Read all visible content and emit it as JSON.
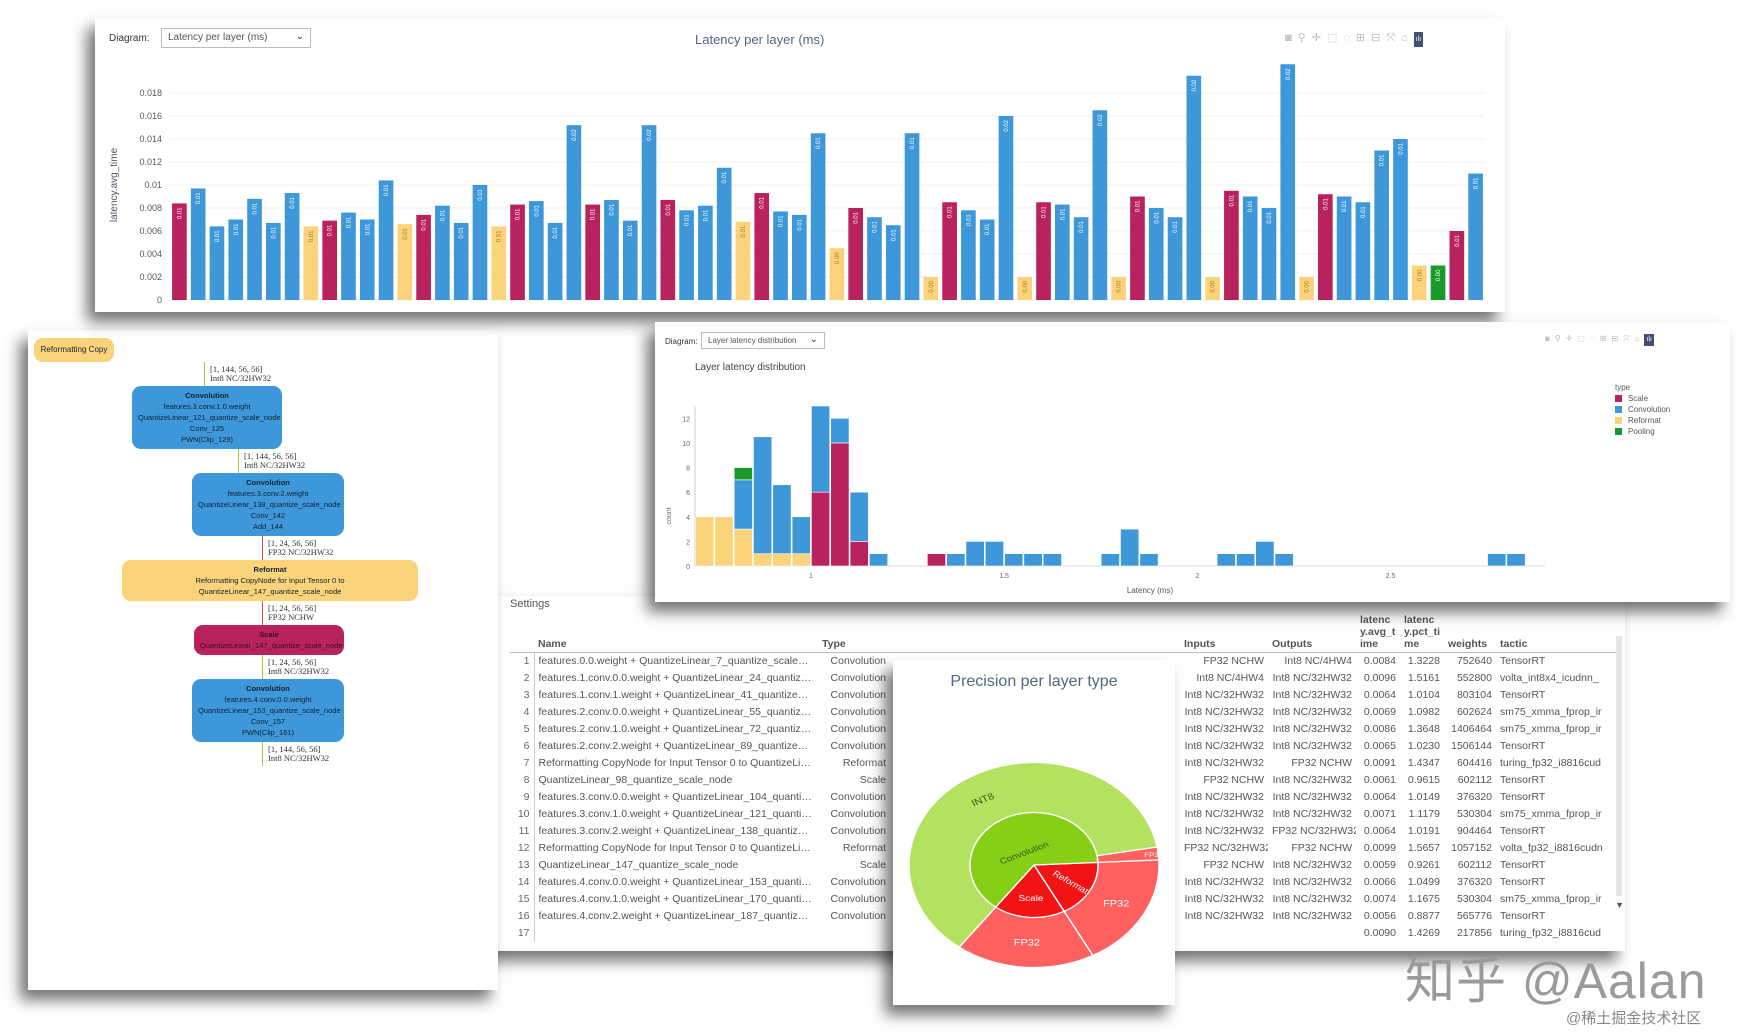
{
  "graph": {
    "partial_node": "Reformatting Copy",
    "nodes": [
      {
        "type": "conv",
        "title": "Convolution",
        "lines": [
          "features.3.conv.1.0.weight",
          "QuantizeLinear_121_quantize_scale_node",
          "Conv_125",
          "PWN(Clip_129)"
        ]
      },
      {
        "type": "conv",
        "title": "Convolution",
        "lines": [
          "features.3.conv.2.weight",
          "QuantizeLinear_138_quantize_scale_node",
          "Conv_142",
          "Add_144"
        ]
      },
      {
        "type": "reformat",
        "title": "Reformat",
        "lines": [
          "Reformatting CopyNode for Input Tensor 0 to QuantizeLinear_147_quantize_scale_node"
        ]
      },
      {
        "type": "scale",
        "title": "Scale",
        "lines": [
          "QuantizeLinear_147_quantize_scale_node"
        ]
      },
      {
        "type": "conv",
        "title": "Convolution",
        "lines": [
          "features.4.conv.0.0.weight",
          "QuantizeLinear_153_quantize_scale_node",
          "Conv_157",
          "PWN(Clip_161)"
        ]
      }
    ],
    "edges": [
      {
        "shape": "[1, 144, 56, 56]",
        "format": "Int8 NC/32HW32"
      },
      {
        "shape": "[1, 144, 56, 56]",
        "format": "Int8 NC/32HW32"
      },
      {
        "shape": "[1, 24, 56, 56]",
        "format": "FP32 NC/32HW32"
      },
      {
        "shape": "[1, 24, 56, 56]",
        "format": "FP32 NCHW"
      },
      {
        "shape": "[1, 24, 56, 56]",
        "format": "Int8 NC/32HW32"
      },
      {
        "shape": "[1, 144, 56, 56]",
        "format": "Int8 NC/32HW32"
      }
    ]
  },
  "table": {
    "settings_label": "Settings",
    "headers": [
      "",
      "Name",
      "Type",
      "Inputs",
      "Outputs",
      "latency.avg_time",
      "latency.pct_time",
      "weights",
      "tactic"
    ],
    "rows": [
      {
        "n": "1",
        "name": "features.0.0.weight + QuantizeLinear_7_quantize_scale_node + Conv_12 + PWN(Clip_16)",
        "type": "Convolution",
        "in": "FP32 NCHW",
        "out": "Int8 NC/4HW4",
        "a": "0.0084",
        "b": "1.3228",
        "c": "752640",
        "tactic": "TensorRT"
      },
      {
        "n": "2",
        "name": "features.1.conv.0.0.weight + QuantizeLinear_24_quantize_scale_node + Conv_29 + PWN(Clip_33)",
        "type": "Convolution",
        "in": "Int8 NC/4HW4",
        "out": "Int8 NC/32HW32",
        "a": "0.0096",
        "b": "1.5161",
        "c": "552800",
        "tactic": "volta_int8x4_icudnn_"
      },
      {
        "n": "3",
        "name": "features.1.conv.1.weight + QuantizeLinear_41_quantize_scale_node + Conv_46",
        "type": "Convolution",
        "in": "Int8 NC/32HW32",
        "out": "Int8 NC/32HW32",
        "a": "0.0064",
        "b": "1.0104",
        "c": "803104",
        "tactic": "TensorRT"
      },
      {
        "n": "4",
        "name": "features.2.conv.0.0.weight + QuantizeLinear_55_quantize_scale_node + Conv_60 + PWN(Clip_64)",
        "type": "Convolution",
        "in": "Int8 NC/32HW32",
        "out": "Int8 NC/32HW32",
        "a": "0.0069",
        "b": "1.0982",
        "c": "602624",
        "tactic": "sm75_xmma_fprop_ir"
      },
      {
        "n": "5",
        "name": "features.2.conv.1.0.weight + QuantizeLinear_72_quantize_scale_node + Conv_77 + PWN(Clip_81)",
        "type": "Convolution",
        "in": "Int8 NC/32HW32",
        "out": "Int8 NC/32HW32",
        "a": "0.0086",
        "b": "1.3648",
        "c": "1406464",
        "tactic": "sm75_xmma_fprop_ir"
      },
      {
        "n": "6",
        "name": "features.2.conv.2.weight + QuantizeLinear_89_quantize_scale_node + Conv_94",
        "type": "Convolution",
        "in": "Int8 NC/32HW32",
        "out": "Int8 NC/32HW32",
        "a": "0.0065",
        "b": "1.0230",
        "c": "1506144",
        "tactic": "TensorRT"
      },
      {
        "n": "7",
        "name": "Reformatting CopyNode for Input Tensor 0 to QuantizeLinear_98_quantize_scale_node",
        "type": "Reformat",
        "in": "Int8 NC/32HW32",
        "out": "FP32 NCHW",
        "a": "0.0091",
        "b": "1.4347",
        "c": "604416",
        "tactic": "turing_fp32_i8816cud"
      },
      {
        "n": "8",
        "name": "QuantizeLinear_98_quantize_scale_node",
        "type": "Scale",
        "in": "FP32 NCHW",
        "out": "Int8 NC/32HW32",
        "a": "0.0061",
        "b": "0.9615",
        "c": "602112",
        "tactic": "TensorRT"
      },
      {
        "n": "9",
        "name": "features.3.conv.0.0.weight + QuantizeLinear_104_quantize_scale_node + Conv_108 + PWN(Clip_1...",
        "type": "Convolution",
        "in": "Int8 NC/32HW32",
        "out": "Int8 NC/32HW32",
        "a": "0.0064",
        "b": "1.0149",
        "c": "376320",
        "tactic": "TensorRT"
      },
      {
        "n": "10",
        "name": "features.3.conv.1.0.weight + QuantizeLinear_121_quantize_scale_node + Conv_125 + PWN(Clip_1...",
        "type": "Convolution",
        "in": "Int8 NC/32HW32",
        "out": "Int8 NC/32HW32",
        "a": "0.0071",
        "b": "1.1179",
        "c": "530304",
        "tactic": "sm75_xmma_fprop_ir"
      },
      {
        "n": "11",
        "name": "features.3.conv.2.weight + QuantizeLinear_138_quantize_scale_node + Conv_142 + Add_144",
        "type": "Convolution",
        "in": "Int8 NC/32HW32",
        "out": "FP32 NC/32HW32",
        "a": "0.0064",
        "b": "1.0191",
        "c": "904464",
        "tactic": "TensorRT"
      },
      {
        "n": "12",
        "name": "Reformatting CopyNode for Input Tensor 0 to QuantizeLinear_147_quantize_scale_node",
        "type": "Reformat",
        "in": "FP32 NC/32HW32",
        "out": "FP32 NCHW",
        "a": "0.0099",
        "b": "1.5657",
        "c": "1057152",
        "tactic": "volta_fp32_i8816cudn"
      },
      {
        "n": "13",
        "name": "QuantizeLinear_147_quantize_scale_node",
        "type": "Scale",
        "in": "FP32 NCHW",
        "out": "Int8 NC/32HW32",
        "a": "0.0059",
        "b": "0.9261",
        "c": "602112",
        "tactic": "TensorRT"
      },
      {
        "n": "14",
        "name": "features.4.conv.0.0.weight + QuantizeLinear_153_quantize_scale_node + Conv_157 + PWN(Clip_1...",
        "type": "Convolution",
        "in": "Int8 NC/32HW32",
        "out": "Int8 NC/32HW32",
        "a": "0.0066",
        "b": "1.0499",
        "c": "376320",
        "tactic": "TensorRT"
      },
      {
        "n": "15",
        "name": "features.4.conv.1.0.weight + QuantizeLinear_170_quantize_scale_node + Conv_174 + PWN(Clip_1...",
        "type": "Convolution",
        "in": "Int8 NC/32HW32",
        "out": "Int8 NC/32HW32",
        "a": "0.0074",
        "b": "1.1675",
        "c": "530304",
        "tactic": "sm75_xmma_fprop_ir"
      },
      {
        "n": "16",
        "name": "features.4.conv.2.weight + QuantizeLinear_187_quantize_scale_node + Conv_191",
        "type": "Convolution",
        "in": "Int8 NC/32HW32",
        "out": "Int8 NC/32HW32",
        "a": "0.0056",
        "b": "0.8877",
        "c": "565776",
        "tactic": "TensorRT"
      },
      {
        "n": "17",
        "name": "",
        "type": "",
        "in": "",
        "out": "",
        "a": "0.0090",
        "b": "1.4269",
        "c": "217856",
        "tactic": "turing_fp32_i8816cud"
      }
    ]
  },
  "colors": {
    "Scale": "#b8235f",
    "Convolution": "#3d97d8",
    "Reformat": "#fbd37a",
    "Pooling": "#1a9a2a"
  },
  "toolbar_icons": [
    "camera-icon",
    "zoom-icon",
    "pan-icon",
    "box-select-icon",
    "lasso-icon",
    "zoom-in-icon",
    "zoom-out-icon",
    "autoscale-icon",
    "reset-axes-icon",
    "plotly-logo-icon"
  ],
  "bar_panel": {
    "diagram_label": "Diagram:",
    "diagram_value": "Latency per layer (ms)"
  },
  "hist_panel": {
    "diagram_label": "Diagram:",
    "diagram_value": "Layer latency distribution"
  },
  "chart_data": [
    {
      "type": "bar",
      "title": "Latency per layer (ms)",
      "xlabel": "",
      "ylabel": "latency.avg_time",
      "ylim": [
        0,
        0.02
      ],
      "yticks": [
        "0",
        "0.002",
        "0.004",
        "0.006",
        "0.008",
        "0.01",
        "0.012",
        "0.014",
        "0.016",
        "0.018"
      ],
      "grid": true,
      "bars": [
        [
          "Scale",
          0.0084
        ],
        [
          "Convolution",
          0.0097
        ],
        [
          "Convolution",
          0.0064
        ],
        [
          "Convolution",
          0.007
        ],
        [
          "Convolution",
          0.0088
        ],
        [
          "Convolution",
          0.0067
        ],
        [
          "Convolution",
          0.0093
        ],
        [
          "Reformat",
          0.0064
        ],
        [
          "Scale",
          0.0069
        ],
        [
          "Convolution",
          0.0076
        ],
        [
          "Convolution",
          0.007
        ],
        [
          "Convolution",
          0.0104
        ],
        [
          "Reformat",
          0.0066
        ],
        [
          "Scale",
          0.0074
        ],
        [
          "Convolution",
          0.0082
        ],
        [
          "Convolution",
          0.0067
        ],
        [
          "Convolution",
          0.01
        ],
        [
          "Reformat",
          0.0064
        ],
        [
          "Scale",
          0.0083
        ],
        [
          "Convolution",
          0.0086
        ],
        [
          "Convolution",
          0.0067
        ],
        [
          "Convolution",
          0.0152
        ],
        [
          "Scale",
          0.0083
        ],
        [
          "Convolution",
          0.0087
        ],
        [
          "Convolution",
          0.0069
        ],
        [
          "Convolution",
          0.0152
        ],
        [
          "Scale",
          0.0087
        ],
        [
          "Convolution",
          0.0078
        ],
        [
          "Convolution",
          0.0082
        ],
        [
          "Convolution",
          0.0115
        ],
        [
          "Reformat",
          0.0068
        ],
        [
          "Scale",
          0.0093
        ],
        [
          "Convolution",
          0.0077
        ],
        [
          "Convolution",
          0.0074
        ],
        [
          "Convolution",
          0.0145
        ],
        [
          "Reformat",
          0.0045
        ],
        [
          "Scale",
          0.008
        ],
        [
          "Convolution",
          0.0072
        ],
        [
          "Convolution",
          0.0065
        ],
        [
          "Convolution",
          0.0145
        ],
        [
          "Reformat",
          0.002
        ],
        [
          "Scale",
          0.0085
        ],
        [
          "Convolution",
          0.0078
        ],
        [
          "Convolution",
          0.007
        ],
        [
          "Convolution",
          0.016
        ],
        [
          "Reformat",
          0.002
        ],
        [
          "Scale",
          0.0085
        ],
        [
          "Convolution",
          0.0083
        ],
        [
          "Convolution",
          0.0072
        ],
        [
          "Convolution",
          0.0165
        ],
        [
          "Reformat",
          0.002
        ],
        [
          "Scale",
          0.009
        ],
        [
          "Convolution",
          0.008
        ],
        [
          "Convolution",
          0.0072
        ],
        [
          "Convolution",
          0.0195
        ],
        [
          "Reformat",
          0.002
        ],
        [
          "Scale",
          0.0095
        ],
        [
          "Convolution",
          0.009
        ],
        [
          "Convolution",
          0.008
        ],
        [
          "Convolution",
          0.0205
        ],
        [
          "Reformat",
          0.002
        ],
        [
          "Scale",
          0.0092
        ],
        [
          "Convolution",
          0.009
        ],
        [
          "Convolution",
          0.0085
        ],
        [
          "Convolution",
          0.013
        ],
        [
          "Convolution",
          0.014
        ],
        [
          "Reformat",
          0.003
        ],
        [
          "Pooling",
          0.003
        ],
        [
          "Scale",
          0.006
        ],
        [
          "Convolution",
          0.011
        ]
      ]
    },
    {
      "type": "bar",
      "stacked": true,
      "title": "Layer latency distribution",
      "xlabel": "Latency (ms)",
      "ylabel": "count",
      "xlim": [
        0.7,
        2.9
      ],
      "ylim": [
        0,
        13
      ],
      "xticks": [
        "1",
        "1.5",
        "2",
        "2.5"
      ],
      "yticks": [
        "0",
        "2",
        "4",
        "6",
        "8",
        "10",
        "12"
      ],
      "legend": {
        "title": "type",
        "placement": "top-right",
        "entries": [
          "Scale",
          "Convolution",
          "Reformat",
          "Pooling"
        ]
      },
      "bin_width": 0.05,
      "bins": [
        {
          "x": 0.7,
          "Scale": 0,
          "Convolution": 0,
          "Reformat": 4,
          "Pooling": 0
        },
        {
          "x": 0.75,
          "Scale": 0,
          "Convolution": 0,
          "Reformat": 4,
          "Pooling": 0
        },
        {
          "x": 0.8,
          "Scale": 0,
          "Convolution": 4,
          "Reformat": 3,
          "Pooling": 1
        },
        {
          "x": 0.85,
          "Scale": 0,
          "Convolution": 9.5,
          "Reformat": 1,
          "Pooling": 0
        },
        {
          "x": 0.9,
          "Scale": 0,
          "Convolution": 5.6,
          "Reformat": 1,
          "Pooling": 0
        },
        {
          "x": 0.95,
          "Scale": 0,
          "Convolution": 3,
          "Reformat": 1,
          "Pooling": 0
        },
        {
          "x": 1.0,
          "Scale": 6,
          "Convolution": 7,
          "Reformat": 0,
          "Pooling": 0
        },
        {
          "x": 1.05,
          "Scale": 10,
          "Convolution": 2,
          "Reformat": 0,
          "Pooling": 0
        },
        {
          "x": 1.1,
          "Scale": 2,
          "Convolution": 4,
          "Reformat": 0,
          "Pooling": 0
        },
        {
          "x": 1.15,
          "Scale": 0,
          "Convolution": 1,
          "Reformat": 0,
          "Pooling": 0
        },
        {
          "x": 1.3,
          "Scale": 1,
          "Convolution": 0,
          "Reformat": 0,
          "Pooling": 0
        },
        {
          "x": 1.35,
          "Scale": 0,
          "Convolution": 1,
          "Reformat": 0,
          "Pooling": 0
        },
        {
          "x": 1.4,
          "Scale": 0,
          "Convolution": 2,
          "Reformat": 0,
          "Pooling": 0
        },
        {
          "x": 1.45,
          "Scale": 0,
          "Convolution": 2,
          "Reformat": 0,
          "Pooling": 0
        },
        {
          "x": 1.5,
          "Scale": 0,
          "Convolution": 1,
          "Reformat": 0,
          "Pooling": 0
        },
        {
          "x": 1.55,
          "Scale": 0,
          "Convolution": 1,
          "Reformat": 0,
          "Pooling": 0
        },
        {
          "x": 1.6,
          "Scale": 0,
          "Convolution": 1,
          "Reformat": 0,
          "Pooling": 0
        },
        {
          "x": 1.75,
          "Scale": 0,
          "Convolution": 1,
          "Reformat": 0,
          "Pooling": 0
        },
        {
          "x": 1.8,
          "Scale": 0,
          "Convolution": 3,
          "Reformat": 0,
          "Pooling": 0
        },
        {
          "x": 1.85,
          "Scale": 0,
          "Convolution": 1,
          "Reformat": 0,
          "Pooling": 0
        },
        {
          "x": 2.05,
          "Scale": 0,
          "Convolution": 1,
          "Reformat": 0,
          "Pooling": 0
        },
        {
          "x": 2.1,
          "Scale": 0,
          "Convolution": 1,
          "Reformat": 0,
          "Pooling": 0
        },
        {
          "x": 2.15,
          "Scale": 0,
          "Convolution": 2,
          "Reformat": 0,
          "Pooling": 0
        },
        {
          "x": 2.2,
          "Scale": 0,
          "Convolution": 1,
          "Reformat": 0,
          "Pooling": 0
        },
        {
          "x": 2.75,
          "Scale": 0,
          "Convolution": 1,
          "Reformat": 0,
          "Pooling": 0
        },
        {
          "x": 2.8,
          "Scale": 0,
          "Convolution": 1,
          "Reformat": 0,
          "Pooling": 0
        }
      ]
    },
    {
      "type": "pie",
      "subtype": "sunburst",
      "title": "Precision per layer type",
      "inner": [
        {
          "label": "Convolution",
          "value": 64,
          "color": "#86cf17"
        },
        {
          "label": "Reformat",
          "value": 18,
          "color": "#f21414"
        },
        {
          "label": "Scale",
          "value": 18,
          "color": "#f21414"
        }
      ],
      "outer": [
        {
          "label": "INT8",
          "parent": "Convolution",
          "value": 62,
          "color": "#b3e160"
        },
        {
          "label": "FP32",
          "parent": "Convolution",
          "value": 2,
          "color": "#ff6060"
        },
        {
          "label": "FP32",
          "parent": "Reformat",
          "value": 18,
          "color": "#ff6060"
        },
        {
          "label": "FP32",
          "parent": "Scale",
          "value": 18,
          "color": "#ff6060"
        }
      ]
    }
  ],
  "watermark": {
    "main": "知乎 @Aalan",
    "sub": "@稀土掘金技术社区"
  }
}
